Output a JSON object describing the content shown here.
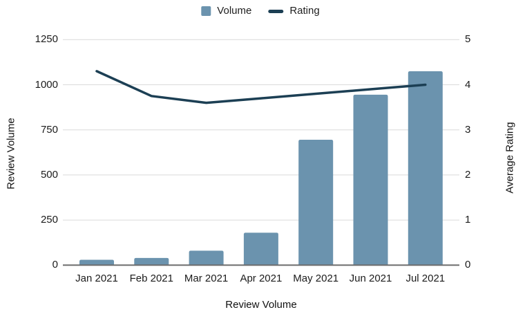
{
  "legend": {
    "items": [
      {
        "label": "Volume",
        "swatch": "square"
      },
      {
        "label": "Rating",
        "swatch": "dash"
      }
    ]
  },
  "axes": {
    "left": {
      "title": "Review Volume"
    },
    "right": {
      "title": "Average Rating"
    },
    "bottom": {
      "title": "Review Volume"
    }
  },
  "colors": {
    "bar": "#6b93ae",
    "line": "#1c3f54",
    "gridline": "#dadada",
    "baseline": "#6e6e6e",
    "text": "#1b1b1b"
  },
  "chart_data": {
    "type": "bar+line combo",
    "categories": [
      "Jan 2021",
      "Feb 2021",
      "Mar 2021",
      "Apr 2021",
      "May 2021",
      "Jun 2021",
      "Jul 2021"
    ],
    "series": [
      {
        "name": "Volume",
        "type": "bar",
        "axis": "left",
        "values": [
          30,
          40,
          80,
          180,
          695,
          945,
          1075
        ]
      },
      {
        "name": "Rating",
        "type": "line",
        "axis": "right",
        "values": [
          4.3,
          3.75,
          3.6,
          3.7,
          3.8,
          3.9,
          4.0
        ]
      }
    ],
    "left_axis": {
      "label": "Review Volume",
      "ticks": [
        0,
        250,
        500,
        750,
        1000,
        1250
      ],
      "ylim": [
        0,
        1250
      ]
    },
    "right_axis": {
      "label": "Average Rating",
      "ticks": [
        0,
        1,
        2,
        3,
        4,
        5
      ],
      "ylim": [
        0,
        5
      ]
    },
    "x_axis": {
      "label": "Review Volume"
    },
    "grid": true,
    "legend_position": "top-center"
  }
}
